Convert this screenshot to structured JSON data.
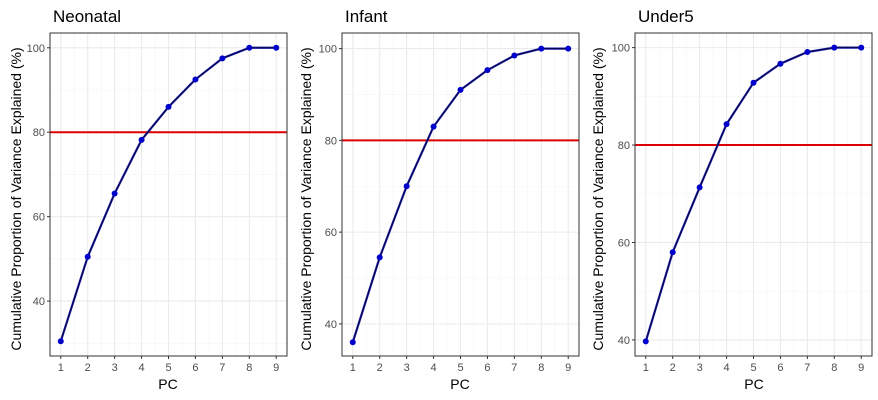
{
  "colors": {
    "series_line": "#1a1aa6",
    "point": "#0000cc",
    "threshold": "#dd0000",
    "grid_major": "#ebebeb",
    "grid_minor": "#f5f5f5",
    "panel_border": "#333333",
    "tick_text": "#4d4d4d"
  },
  "chart_data": [
    {
      "type": "line",
      "title": "Neonatal",
      "xlabel": "PC",
      "ylabel": "Cumulative Proportion of Variance Explained (%)",
      "x": [
        1,
        2,
        3,
        4,
        5,
        6,
        7,
        8,
        9
      ],
      "x_ticks": [
        "1",
        "2",
        "3",
        "4",
        "5",
        "6",
        "7",
        "8",
        "9"
      ],
      "y": [
        30.5,
        50.5,
        65.5,
        78.2,
        86.0,
        92.5,
        97.5,
        100,
        100
      ],
      "y_ticks": [
        40,
        60,
        80,
        100
      ],
      "ylim": [
        27,
        103.5
      ],
      "threshold": 80,
      "grid": true
    },
    {
      "type": "line",
      "title": "Infant",
      "xlabel": "PC",
      "ylabel": "Cumulative Proportion of Variance Explained (%)",
      "x": [
        1,
        2,
        3,
        4,
        5,
        6,
        7,
        8,
        9
      ],
      "x_ticks": [
        "1",
        "2",
        "3",
        "4",
        "5",
        "6",
        "7",
        "8",
        "9"
      ],
      "y": [
        36.0,
        54.5,
        70.0,
        83.0,
        91.0,
        95.3,
        98.5,
        100,
        100
      ],
      "y_ticks": [
        40,
        60,
        80,
        100
      ],
      "ylim": [
        33,
        103.4
      ],
      "threshold": 80,
      "grid": true
    },
    {
      "type": "line",
      "title": "Under5",
      "xlabel": "PC",
      "ylabel": "Cumulative Proportion of Variance Explained (%)",
      "x": [
        1,
        2,
        3,
        4,
        5,
        6,
        7,
        8,
        9
      ],
      "x_ticks": [
        "1",
        "2",
        "3",
        "4",
        "5",
        "6",
        "7",
        "8",
        "9"
      ],
      "y": [
        39.7,
        58.0,
        71.3,
        84.3,
        92.8,
        96.7,
        99.1,
        100,
        100
      ],
      "y_ticks": [
        40,
        60,
        80,
        100
      ],
      "ylim": [
        36.7,
        103.0
      ],
      "threshold": 80,
      "grid": true
    }
  ]
}
